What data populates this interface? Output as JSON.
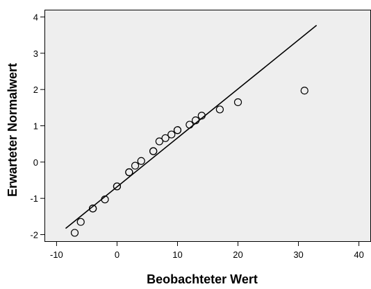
{
  "chart_data": {
    "type": "scatter",
    "xlabel": "Beobachteter Wert",
    "ylabel": "Erwarteter Normalwert",
    "xlim": [
      -12,
      42
    ],
    "ylim": [
      -2.2,
      4.2
    ],
    "x_ticks": [
      -10,
      0,
      10,
      20,
      30,
      40
    ],
    "y_ticks": [
      -2,
      -1,
      0,
      1,
      2,
      3,
      4
    ],
    "grid": false,
    "plot_background": "#eeeeee",
    "marker_color": "#000000",
    "line_color": "#000000",
    "points": [
      {
        "x": -7,
        "y": -1.95
      },
      {
        "x": -6,
        "y": -1.65
      },
      {
        "x": -4,
        "y": -1.28
      },
      {
        "x": -4,
        "y": -1.28
      },
      {
        "x": -2,
        "y": -1.03
      },
      {
        "x": 0,
        "y": -0.67
      },
      {
        "x": 0,
        "y": -0.67
      },
      {
        "x": 2,
        "y": -0.28
      },
      {
        "x": 2,
        "y": -0.28
      },
      {
        "x": 3,
        "y": -0.1
      },
      {
        "x": 4,
        "y": 0.03
      },
      {
        "x": 6,
        "y": 0.3
      },
      {
        "x": 6,
        "y": 0.3
      },
      {
        "x": 7,
        "y": 0.57
      },
      {
        "x": 8,
        "y": 0.66
      },
      {
        "x": 9,
        "y": 0.76
      },
      {
        "x": 10,
        "y": 0.88
      },
      {
        "x": 10,
        "y": 0.88
      },
      {
        "x": 12,
        "y": 1.03
      },
      {
        "x": 13,
        "y": 1.15
      },
      {
        "x": 14,
        "y": 1.28
      },
      {
        "x": 17,
        "y": 1.45
      },
      {
        "x": 20,
        "y": 1.65
      },
      {
        "x": 31,
        "y": 1.97
      }
    ],
    "reference_line": {
      "x": [
        -8.5,
        33
      ],
      "y": [
        -1.83,
        3.77
      ]
    }
  }
}
